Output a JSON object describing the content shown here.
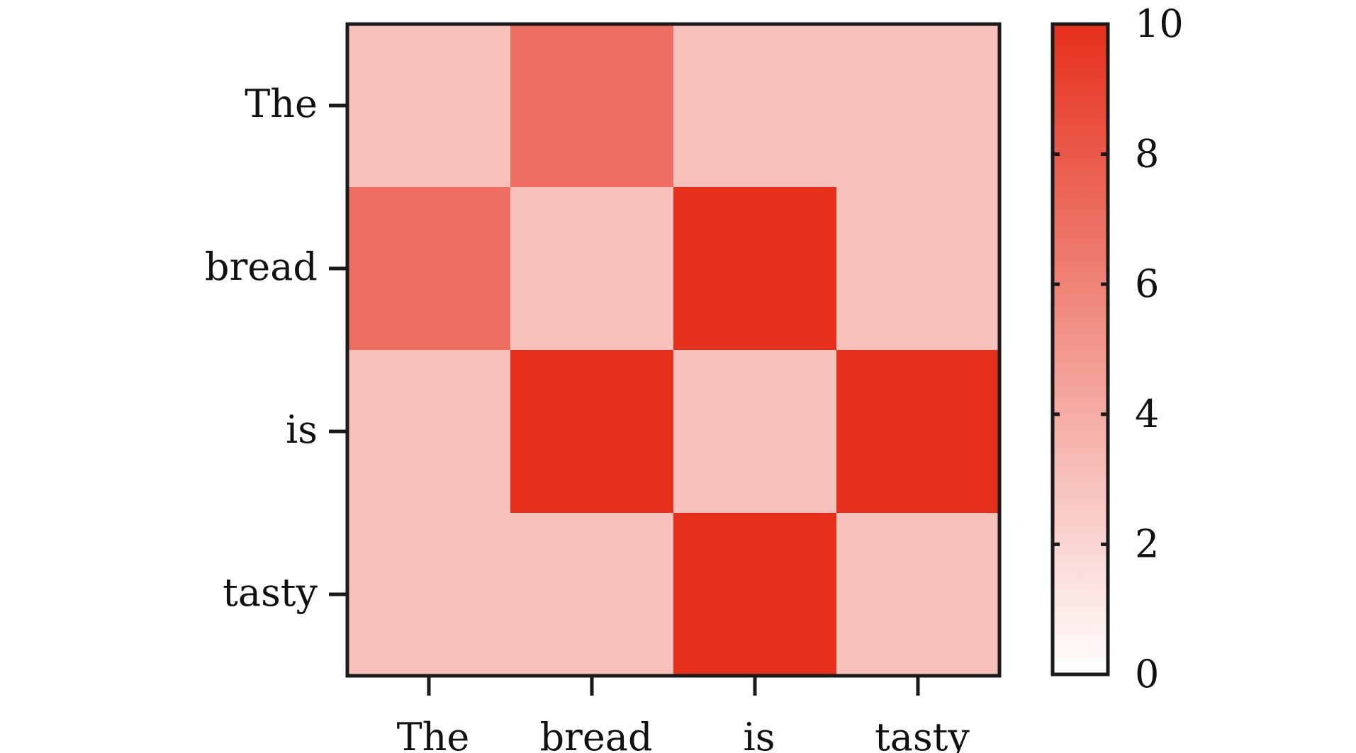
{
  "chart_data": {
    "type": "heatmap",
    "title": "",
    "xlabel": "",
    "ylabel": "",
    "x_categories": [
      "The",
      "bread",
      "is",
      "tasty"
    ],
    "y_categories": [
      "The",
      "bread",
      "is",
      "tasty"
    ],
    "values": [
      [
        3,
        7,
        3,
        3
      ],
      [
        7,
        3,
        10,
        3
      ],
      [
        3,
        10,
        3,
        10
      ],
      [
        3,
        3,
        10,
        3
      ]
    ],
    "colorbar": {
      "range": [
        0,
        10
      ],
      "ticks": [
        0,
        2,
        4,
        6,
        8,
        10
      ],
      "tick_labels": [
        "0",
        "2",
        "4",
        "6",
        "8",
        "10"
      ]
    },
    "colors": {
      "low": "#ffffff",
      "high": "#e5301c"
    },
    "grid": false,
    "legend": "colorbar-right"
  }
}
